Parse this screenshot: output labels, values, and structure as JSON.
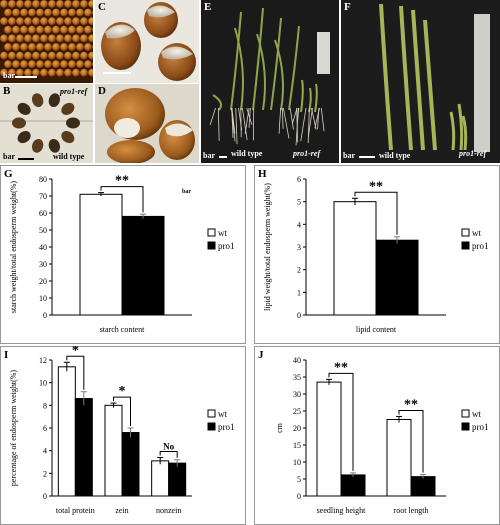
{
  "photos": {
    "A": {
      "letter": "",
      "bar": "bar"
    },
    "B": {
      "letter": "B",
      "genotype_top": "pro1-ref",
      "bar": "bar",
      "genotype_bottom": "wild type"
    },
    "C": {
      "letter": "C"
    },
    "D": {
      "letter": "D"
    },
    "E": {
      "letter": "E",
      "bar": "bar",
      "wt_label": "wild type",
      "mut_label": "pro1-ref"
    },
    "F": {
      "letter": "F",
      "bar": "bar",
      "wt_label": "wild type",
      "mut_label": "pro1-ref"
    }
  },
  "colors": {
    "wt": "#ffffff",
    "pro1": "#000000",
    "axis": "#000000",
    "panel_border": "#999999"
  },
  "chart_data": [
    {
      "panel": "G",
      "type": "bar",
      "categories": [
        "starch content"
      ],
      "series": [
        {
          "name": "wt",
          "values": [
            71
          ]
        },
        {
          "name": "pro1",
          "values": [
            58
          ]
        }
      ],
      "errors": [
        [
          1
        ],
        [
          1.3
        ]
      ],
      "ylabel": "starch weight/total endosperm weight(%)",
      "ylim": [
        0,
        80
      ],
      "yticks": [
        0,
        10,
        20,
        30,
        40,
        50,
        60,
        70,
        80
      ],
      "significance": [
        "**"
      ],
      "annotation": "bar",
      "legend": "right"
    },
    {
      "panel": "H",
      "type": "bar",
      "categories": [
        "lipid content"
      ],
      "series": [
        {
          "name": "wt",
          "values": [
            5.0
          ]
        },
        {
          "name": "pro1",
          "values": [
            3.3
          ]
        }
      ],
      "errors": [
        [
          0.15
        ],
        [
          0.15
        ]
      ],
      "ylabel": "lipid weight/total endosperm weight(%)",
      "ylim": [
        0,
        6
      ],
      "yticks": [
        0,
        1,
        2,
        3,
        4,
        5,
        6
      ],
      "significance": [
        "**"
      ],
      "legend": "right"
    },
    {
      "panel": "I",
      "type": "bar",
      "categories": [
        "total protein",
        "zein",
        "nonzein"
      ],
      "series": [
        {
          "name": "wt",
          "values": [
            11.4,
            8.0,
            3.1
          ]
        },
        {
          "name": "pro1",
          "values": [
            8.6,
            5.6,
            2.9
          ]
        }
      ],
      "errors": [
        [
          0.4,
          0.2,
          0.3
        ],
        [
          0.6,
          0.4,
          0.3
        ]
      ],
      "ylabel": "percentage of endosperm weight(%)",
      "ylim": [
        0,
        12
      ],
      "yticks": [
        0,
        2,
        4,
        6,
        8,
        10,
        12
      ],
      "significance": [
        "*",
        "*",
        "No"
      ],
      "legend": "right"
    },
    {
      "panel": "J",
      "type": "bar",
      "categories": [
        "seedling height",
        "root length"
      ],
      "series": [
        {
          "name": "wt",
          "values": [
            33.5,
            22.5
          ]
        },
        {
          "name": "pro1",
          "values": [
            6.2,
            5.7
          ]
        }
      ],
      "errors": [
        [
          0.8,
          0.9
        ],
        [
          0.6,
          0.6
        ]
      ],
      "ylabel": "cm",
      "ylim": [
        0,
        40
      ],
      "yticks": [
        0,
        5,
        10,
        15,
        20,
        25,
        30,
        35,
        40
      ],
      "significance": [
        "**",
        "**"
      ],
      "legend": "right"
    }
  ]
}
